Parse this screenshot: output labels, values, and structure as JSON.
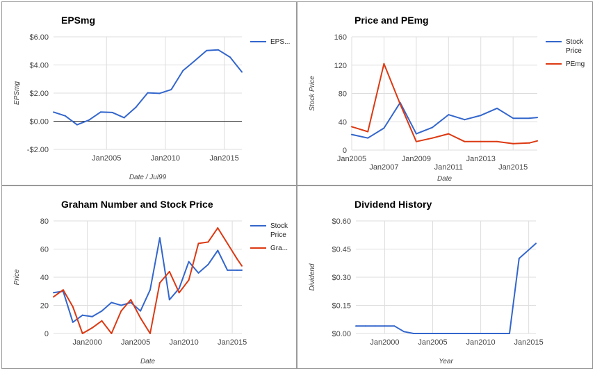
{
  "colors": {
    "blue": "#3366cc",
    "red": "#dc3912",
    "grid": "#dddddd",
    "zero": "#333333"
  },
  "chart_data": [
    {
      "type": "line",
      "title": "EPSmg",
      "xlabel": "Date / Jul99",
      "ylabel": "EPSmg",
      "ylim": [
        -2,
        6
      ],
      "xlim": [
        2000.5,
        2016.5
      ],
      "yticks": [
        -2,
        0,
        2,
        4,
        6
      ],
      "ytick_labels": [
        "-$2.00",
        "$0.00",
        "$2.00",
        "$4.00",
        "$6.00"
      ],
      "xticks": [
        2005,
        2010,
        2015
      ],
      "xtick_labels": [
        "Jan2005",
        "Jan2010",
        "Jan2015"
      ],
      "zero_line": true,
      "legend_position": "right",
      "series": [
        {
          "name": "EPS...",
          "color": "#3366cc",
          "x": [
            2000.5,
            2001.5,
            2002.5,
            2003.5,
            2004.5,
            2005.5,
            2006.5,
            2007.5,
            2008.5,
            2009.5,
            2010.5,
            2011.5,
            2012.5,
            2013.5,
            2014.5,
            2015.5,
            2016.5
          ],
          "values": [
            0.65,
            0.38,
            -0.25,
            0.08,
            0.65,
            0.62,
            0.25,
            1.0,
            2.02,
            1.98,
            2.25,
            3.6,
            4.3,
            5.02,
            5.07,
            4.55,
            3.5
          ]
        }
      ]
    },
    {
      "type": "line",
      "title": "Price and PEmg",
      "xlabel": "Date",
      "ylabel": "Stock Price",
      "ylim": [
        0,
        160
      ],
      "xlim": [
        2005,
        2016.5
      ],
      "yticks": [
        0,
        40,
        80,
        120,
        160
      ],
      "ytick_labels": [
        "0",
        "40",
        "80",
        "120",
        "160"
      ],
      "xticks": [
        2005,
        2007,
        2009,
        2011,
        2013,
        2015
      ],
      "xtick_labels": [
        "Jan2005",
        "Jan2007",
        "Jan2009",
        "Jan2011",
        "Jan2013",
        "Jan2015"
      ],
      "xtick_staggered": true,
      "legend_position": "right",
      "series": [
        {
          "name": "Stock Price",
          "name_lines": [
            "Stock",
            "Price"
          ],
          "color": "#3366cc",
          "x": [
            2005,
            2006,
            2007,
            2008,
            2009,
            2010,
            2011,
            2012,
            2013,
            2014,
            2015,
            2016,
            2016.5
          ],
          "values": [
            22,
            17,
            31,
            67,
            23,
            32,
            50,
            43,
            49,
            59,
            45,
            45,
            46
          ]
        },
        {
          "name": "PEmg",
          "name_lines": [
            "PEmg"
          ],
          "color": "#dc3912",
          "x": [
            2005,
            2006,
            2007,
            2008,
            2009,
            2010,
            2011,
            2012,
            2013,
            2014,
            2015,
            2016,
            2016.5
          ],
          "values": [
            33,
            26,
            122,
            65,
            12,
            17,
            23,
            12,
            12,
            12,
            9,
            10,
            13
          ]
        }
      ]
    },
    {
      "type": "line",
      "title": "Graham Number and Stock Price",
      "xlabel": "Date",
      "ylabel": "Price",
      "ylim": [
        0,
        80
      ],
      "xlim": [
        1996.5,
        2016
      ],
      "yticks": [
        0,
        20,
        40,
        60,
        80
      ],
      "ytick_labels": [
        "0",
        "20",
        "40",
        "60",
        "80"
      ],
      "xticks": [
        2000,
        2005,
        2010,
        2015
      ],
      "xtick_labels": [
        "Jan2000",
        "Jan2005",
        "Jan2010",
        "Jan2015"
      ],
      "legend_position": "right",
      "series": [
        {
          "name": "Stock Price",
          "name_lines": [
            "Stock",
            "Price"
          ],
          "color": "#3366cc",
          "x": [
            1996.5,
            1997.5,
            1998.5,
            1999.5,
            2000.5,
            2001.5,
            2002.5,
            2003.5,
            2004.5,
            2005.5,
            2006.5,
            2007.5,
            2008.5,
            2009.5,
            2010.5,
            2011.5,
            2012.5,
            2013.5,
            2014.5,
            2015.5,
            2016
          ],
          "values": [
            29,
            30,
            8,
            13,
            12,
            16,
            22,
            20,
            22,
            16,
            31,
            68,
            24,
            32,
            51,
            43,
            49,
            59,
            45,
            45,
            45
          ]
        },
        {
          "name": "Gra...",
          "name_lines": [
            "Gra..."
          ],
          "color": "#dc3912",
          "x": [
            1996.5,
            1997.5,
            1998.5,
            1999.5,
            2000.5,
            2001.5,
            2002.5,
            2003.5,
            2004.5,
            2005.5,
            2006.5,
            2007.5,
            2008.5,
            2009.5,
            2010.5,
            2011.5,
            2012.5,
            2013.5,
            2014.5,
            2015.5,
            2016
          ],
          "values": [
            26,
            31,
            19,
            0,
            4,
            9,
            0,
            16,
            24,
            11,
            0,
            36,
            44,
            29,
            38,
            64,
            65,
            75,
            64,
            53,
            48
          ]
        }
      ]
    },
    {
      "type": "line",
      "title": "Dividend History",
      "xlabel": "Year",
      "ylabel": "Dividend",
      "ylim": [
        0,
        0.6
      ],
      "xlim": [
        1997,
        2015.75
      ],
      "yticks": [
        0,
        0.15,
        0.3,
        0.45,
        0.6
      ],
      "ytick_labels": [
        "$0.00",
        "$0.15",
        "$0.30",
        "$0.45",
        "$0.60"
      ],
      "xticks": [
        2000,
        2005,
        2010,
        2015
      ],
      "xtick_labels": [
        "Jan2000",
        "Jan2005",
        "Jan2010",
        "Jan2015"
      ],
      "series": [
        {
          "color": "#3366cc",
          "x": [
            1997,
            1998,
            1999,
            2000,
            2001,
            2002,
            2003,
            2004,
            2005,
            2006,
            2007,
            2008,
            2009,
            2010,
            2011,
            2012,
            2013,
            2014,
            2015.75
          ],
          "values": [
            0.04,
            0.04,
            0.04,
            0.04,
            0.04,
            0.01,
            0.0,
            0.0,
            0.0,
            0.0,
            0.0,
            0.0,
            0.0,
            0.0,
            0.0,
            0.0,
            0.0,
            0.4,
            0.48
          ]
        }
      ]
    }
  ]
}
